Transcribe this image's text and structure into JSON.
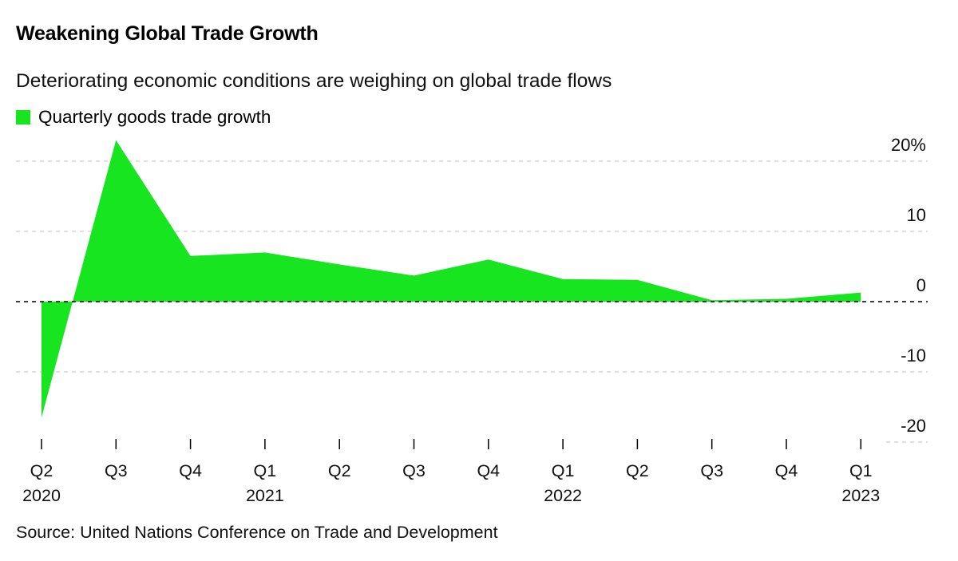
{
  "title": "Weakening Global Trade Growth",
  "subtitle": "Deteriorating economic conditions are weighing on global trade flows",
  "source": "Source: United Nations Conference on Trade and Development",
  "colors": {
    "series": "#16e51f",
    "grid": "#cccccc",
    "zero": "#000000"
  },
  "chart_data": {
    "type": "area",
    "title": "Weakening Global Trade Growth",
    "subtitle": "Deteriorating economic conditions are weighing on global trade flows",
    "xlabel": "",
    "ylabel": "",
    "ylim": [
      -20,
      20
    ],
    "y_ticks": [
      {
        "value": 20,
        "label": "20%"
      },
      {
        "value": 10,
        "label": "10"
      },
      {
        "value": 0,
        "label": "0"
      },
      {
        "value": -10,
        "label": "-10"
      },
      {
        "value": -20,
        "label": "-20"
      }
    ],
    "grid": true,
    "legend": {
      "placement": "top-left",
      "entries": [
        "Quarterly goods trade growth"
      ]
    },
    "categories": [
      "Q2",
      "Q3",
      "Q4",
      "Q1",
      "Q2",
      "Q3",
      "Q4",
      "Q1",
      "Q2",
      "Q3",
      "Q4",
      "Q1"
    ],
    "years": [
      "2020",
      "",
      "",
      "2021",
      "",
      "",
      "",
      "2022",
      "",
      "",
      "",
      "2023"
    ],
    "series": [
      {
        "name": "Quarterly goods trade growth",
        "values": [
          -16.5,
          23,
          6.5,
          7,
          5.3,
          3.7,
          6,
          3.2,
          3.1,
          0.2,
          0.4,
          1.3
        ]
      }
    ]
  }
}
